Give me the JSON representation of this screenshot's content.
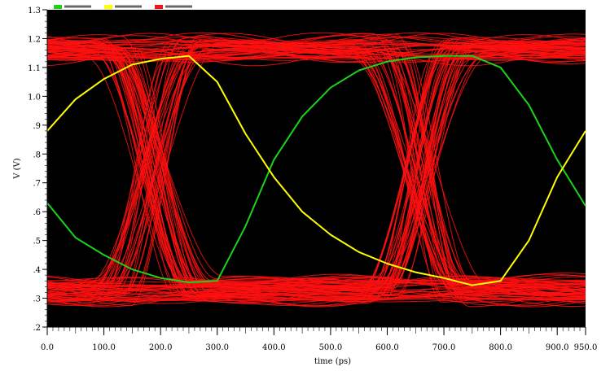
{
  "chart_data": {
    "type": "line",
    "xlabel": "time (ps)",
    "ylabel": "V (V)",
    "xlim": [
      0,
      950
    ],
    "ylim": [
      0.2,
      1.3
    ],
    "x_ticks": [
      0,
      100,
      200,
      300,
      400,
      500,
      600,
      700,
      800,
      900,
      950
    ],
    "x_tick_labels": [
      "0.0",
      "100.0",
      "200.0",
      "300.0",
      "400.0",
      "500.0",
      "600.0",
      "700.0",
      "800.0",
      "900.0",
      "950.0"
    ],
    "y_ticks": [
      0.2,
      0.3,
      0.4,
      0.5,
      0.6,
      0.7,
      0.8,
      0.9,
      1.0,
      1.1,
      1.2,
      1.3
    ],
    "y_tick_labels": [
      ".2",
      ".3",
      ".4",
      ".5",
      ".6",
      ".7",
      ".8",
      ".9",
      "1.0",
      "1.1",
      "1.2",
      "1.3"
    ],
    "grid": false,
    "legend_position": "top-left",
    "background": "#000000",
    "eye_diagram": {
      "ui_ps": 475,
      "first_crossing_ps": 183,
      "crossing_v": 0.74,
      "high_v": [
        1.13,
        1.2
      ],
      "low_v": [
        0.29,
        0.37
      ],
      "trace_count": 130,
      "color": "#ff1010"
    },
    "series": [
      {
        "color": "#19d419",
        "x": [
          0,
          50,
          100,
          150,
          200,
          250,
          300,
          350,
          400,
          450,
          500,
          550,
          600,
          650,
          700,
          750,
          800,
          850,
          900,
          950
        ],
        "y": [
          0.63,
          0.51,
          0.45,
          0.4,
          0.37,
          0.355,
          0.36,
          0.55,
          0.78,
          0.93,
          1.03,
          1.09,
          1.12,
          1.135,
          1.14,
          1.14,
          1.1,
          0.97,
          0.78,
          0.62
        ]
      },
      {
        "color": "#ffff00",
        "x": [
          0,
          50,
          100,
          150,
          200,
          250,
          300,
          350,
          400,
          450,
          500,
          550,
          600,
          650,
          700,
          750,
          800,
          850,
          900,
          950
        ],
        "y": [
          0.88,
          0.99,
          1.06,
          1.11,
          1.13,
          1.14,
          1.05,
          0.87,
          0.72,
          0.6,
          0.52,
          0.46,
          0.42,
          0.39,
          0.37,
          0.345,
          0.36,
          0.5,
          0.72,
          0.88
        ]
      }
    ]
  }
}
